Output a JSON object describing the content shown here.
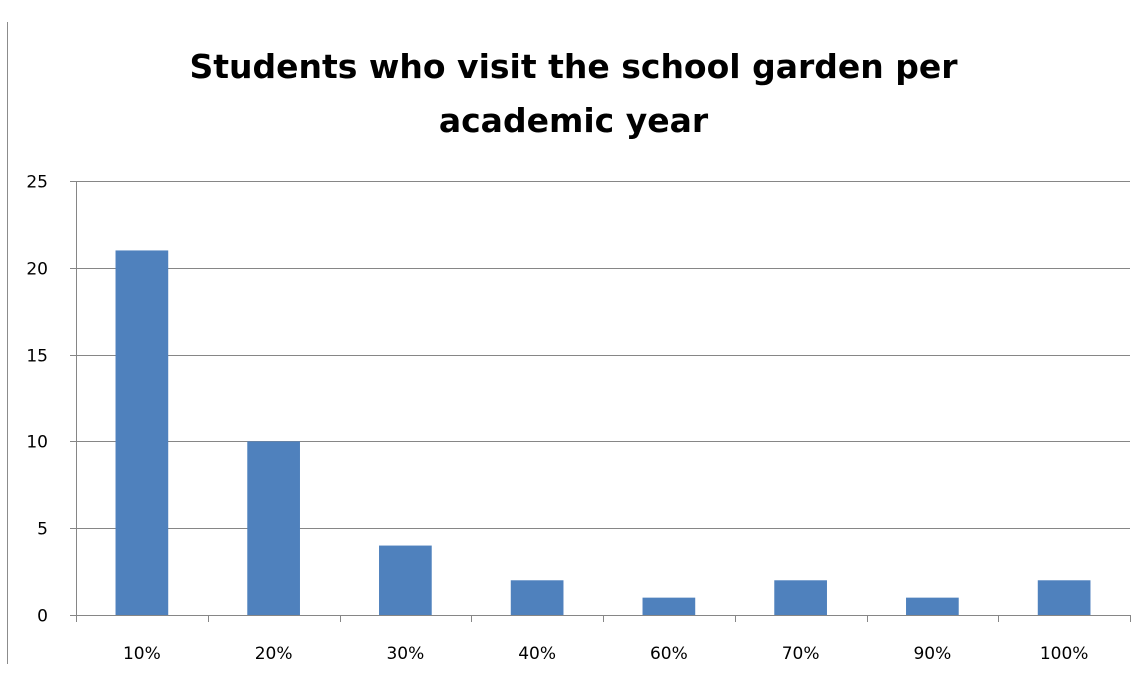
{
  "chart_data": {
    "type": "bar",
    "title_lines": [
      "Students who visit the school garden per",
      "academic year"
    ],
    "categories": [
      "10%",
      "20%",
      "30%",
      "40%",
      "60%",
      "70%",
      "90%",
      "100%"
    ],
    "values": [
      21,
      10,
      4,
      2,
      1,
      2,
      1,
      2
    ],
    "ylim": [
      0,
      25
    ],
    "yticks": [
      0,
      5,
      10,
      15,
      20,
      25
    ],
    "xlabel": "",
    "ylabel": "",
    "grid": true,
    "legend": "none",
    "bar_color": "#4f81bd",
    "grid_color": "#868686"
  }
}
